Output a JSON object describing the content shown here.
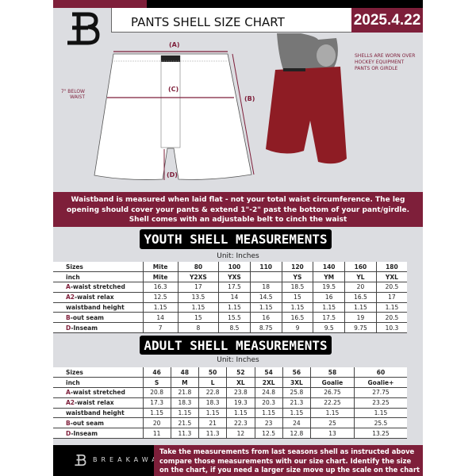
{
  "header": {
    "title": "PANTS SHELL SIZE CHART",
    "date": "2025.4.22"
  },
  "diagram": {
    "label_a": "(A)",
    "label_b": "(B)",
    "label_c": "(C)",
    "label_d": "(D)",
    "note_c": "7\" BELOW WAIST",
    "worn_note": "SHELLS ARE WORN OVER HOCKEY EQUIPMENT PANTS OR GIRDLE"
  },
  "info_band": {
    "line1": "Waistband is measured when laid flat - not your total waist circumference. The leg",
    "line2": "opening should cover your pants & extend 1\"-2\" past the bottom of your pant/girdle.",
    "line3": "Shell comes with an adjustable belt to cinch the waist"
  },
  "youth": {
    "title": "YOUTH SHELL MEASUREMENTS",
    "unit": "Unit: Inches",
    "rows": [
      {
        "prefix": "",
        "label": "Sizes",
        "values": [
          "Mite",
          "80",
          "100",
          "110",
          "120",
          "140",
          "160",
          "180"
        ]
      },
      {
        "prefix": "",
        "label": "inch",
        "values": [
          "Mite",
          "Y2XS",
          "YXS",
          "",
          "YS",
          "YM",
          "YL",
          "YXL"
        ]
      },
      {
        "prefix": "A",
        "label": "-waist stretched",
        "values": [
          "16.3",
          "17",
          "17.5",
          "18",
          "18.5",
          "19.5",
          "20",
          "20.5"
        ]
      },
      {
        "prefix": "A2",
        "label": "-waist relax",
        "values": [
          "12.5",
          "13.5",
          "14",
          "14.5",
          "15",
          "16",
          "16.5",
          "17"
        ]
      },
      {
        "prefix": "",
        "label": "waistband height",
        "values": [
          "1.15",
          "1.15",
          "1.15",
          "1.15",
          "1.15",
          "1.15",
          "1.15",
          "1.15"
        ]
      },
      {
        "prefix": "B",
        "label": "-out seam",
        "values": [
          "14",
          "15",
          "15.5",
          "16",
          "16.5",
          "17.5",
          "19",
          "20.5"
        ]
      },
      {
        "prefix": "D",
        "label": "-Inseam",
        "values": [
          "7",
          "8",
          "8.5",
          "8.75",
          "9",
          "9.5",
          "9.75",
          "10.3"
        ]
      }
    ]
  },
  "adult": {
    "title": "ADULT SHELL MEASUREMENTS",
    "unit": "Unit: Inches",
    "rows": [
      {
        "prefix": "",
        "label": "Sizes",
        "values": [
          "46",
          "48",
          "50",
          "52",
          "54",
          "56",
          "58",
          "60"
        ]
      },
      {
        "prefix": "",
        "label": "inch",
        "values": [
          "S",
          "M",
          "L",
          "XL",
          "2XL",
          "3XL",
          "Goalie",
          "Goalie+"
        ]
      },
      {
        "prefix": "A",
        "label": "-waist stretched",
        "values": [
          "20.8",
          "21.8",
          "22.8",
          "23.8",
          "24.8",
          "25.8",
          "26.75",
          "27.75"
        ]
      },
      {
        "prefix": "A2",
        "label": "-waist relax",
        "values": [
          "17.3",
          "18.3",
          "18.3",
          "19.3",
          "20.3",
          "21.3",
          "22.25",
          "23.25"
        ]
      },
      {
        "prefix": "",
        "label": "waistband height",
        "values": [
          "1.15",
          "1.15",
          "1.15",
          "1.15",
          "1.15",
          "1.15",
          "1.15",
          "1.15"
        ]
      },
      {
        "prefix": "B",
        "label": "-out seam",
        "values": [
          "20",
          "21.5",
          "21",
          "22.3",
          "23",
          "24",
          "25",
          "25.5"
        ]
      },
      {
        "prefix": "D",
        "label": "-Inseam",
        "values": [
          "11",
          "11.3",
          "11.3",
          "12",
          "12.5",
          "12.8",
          "13",
          "13.25"
        ]
      }
    ]
  },
  "footer": {
    "brand": "BREAKAWAY",
    "line1": "Take the measurements from last seasons shell as instructed above",
    "line2": "compare those measurements  with our size chart. Identify the size",
    "line3": "on the chart, if you need a larger size move up the scale on the chart"
  },
  "colors": {
    "accent": "#7e1f3a",
    "background": "#dcdde1"
  }
}
